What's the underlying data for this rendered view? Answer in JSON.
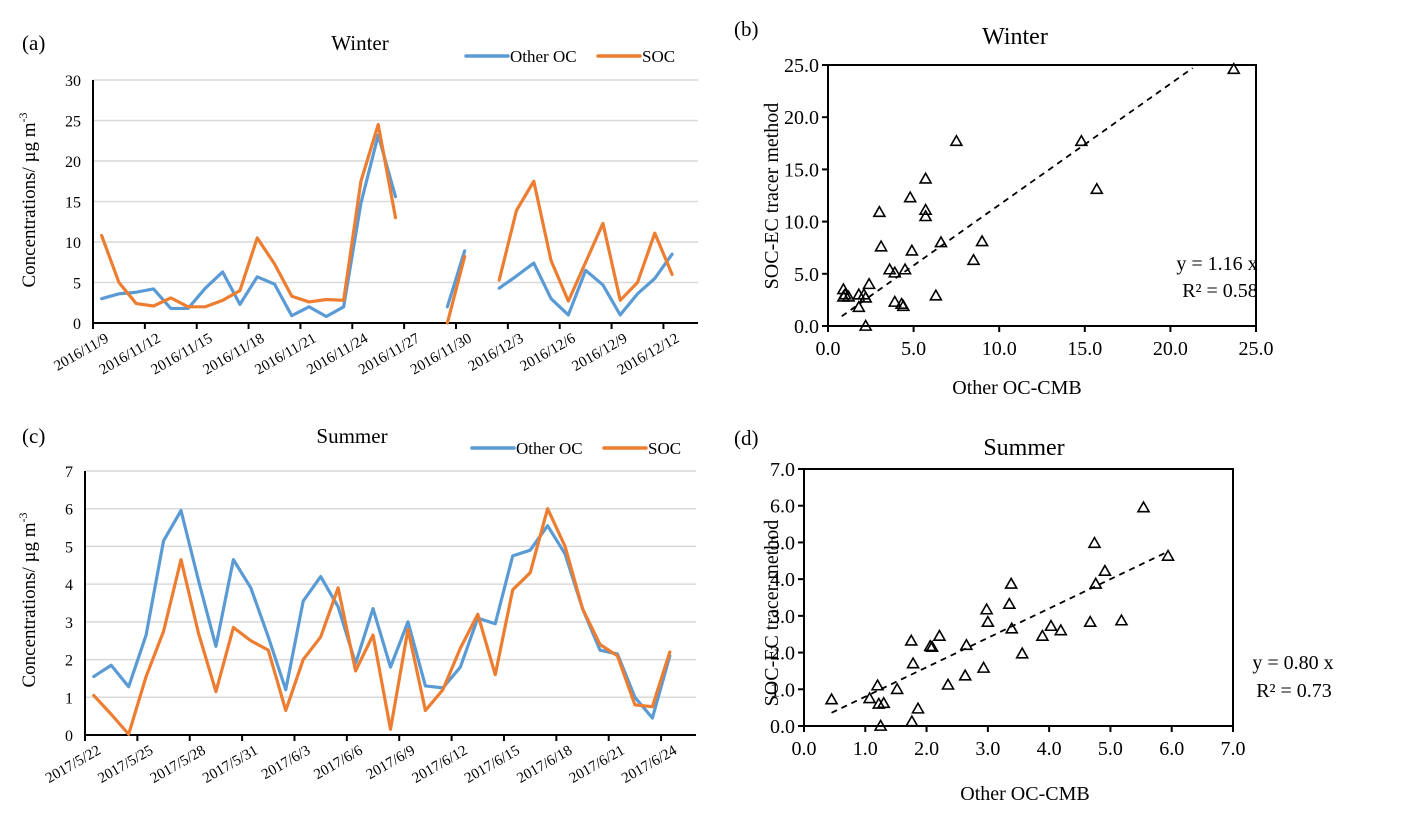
{
  "panels": {
    "a": {
      "label": "(a)"
    },
    "b": {
      "label": "(b)"
    },
    "c": {
      "label": "(c)"
    },
    "d": {
      "label": "(d)"
    }
  },
  "colors": {
    "other_oc": "#5B9BD5",
    "soc": "#ED7D31",
    "grid": "#D9D9D9",
    "axis": "#000000"
  },
  "chart_data": [
    {
      "id": "a",
      "type": "line",
      "title": "Winter",
      "xlabel": "",
      "ylabel": "Concentrations/ µg m⁻³",
      "ylabel_main": "Concentrations/ µg m",
      "ylabel_sup": "-3",
      "ylim": [
        0,
        30
      ],
      "yticks": [
        0,
        5,
        10,
        15,
        20,
        25,
        30
      ],
      "grid": true,
      "legend": "top-right",
      "legend_entries": [
        "Other OC",
        "SOC"
      ],
      "categories": [
        "2016/11/9",
        "2016/11/10",
        "2016/11/11",
        "2016/11/12",
        "2016/11/13",
        "2016/11/14",
        "2016/11/15",
        "2016/11/16",
        "2016/11/17",
        "2016/11/18",
        "2016/11/19",
        "2016/11/20",
        "2016/11/21",
        "2016/11/22",
        "2016/11/23",
        "2016/11/24",
        "2016/11/25",
        "2016/11/26",
        "2016/11/27",
        "2016/11/28",
        "2016/11/29",
        "2016/11/30",
        "2016/12/1",
        "2016/12/2",
        "2016/12/3",
        "2016/12/4",
        "2016/12/5",
        "2016/12/6",
        "2016/12/7",
        "2016/12/8",
        "2016/12/9",
        "2016/12/10",
        "2016/12/11",
        "2016/12/12",
        "2016/12/13"
      ],
      "tick_labels": [
        "2016/11/9",
        "2016/11/12",
        "2016/11/15",
        "2016/11/18",
        "2016/11/21",
        "2016/11/24",
        "2016/11/27",
        "2016/11/30",
        "2016/12/3",
        "2016/12/6",
        "2016/12/9",
        "2016/12/12"
      ],
      "series": [
        {
          "name": "Other OC",
          "values": [
            3.0,
            3.6,
            3.8,
            4.2,
            1.8,
            1.8,
            4.3,
            6.3,
            2.3,
            5.7,
            4.8,
            0.9,
            2.0,
            0.8,
            2.0,
            14.8,
            23.2,
            15.6,
            null,
            null,
            2.0,
            8.9,
            null,
            4.3,
            5.8,
            7.4,
            3.0,
            1.0,
            6.5,
            4.7,
            1.0,
            3.6,
            5.5,
            8.5,
            null
          ]
        },
        {
          "name": "SOC",
          "values": [
            10.8,
            5.0,
            2.4,
            2.1,
            3.1,
            2.0,
            2.0,
            2.8,
            4.0,
            10.5,
            7.3,
            3.3,
            2.6,
            2.9,
            2.8,
            17.5,
            24.5,
            13.0,
            null,
            null,
            0.0,
            8.2,
            null,
            5.3,
            13.9,
            17.5,
            7.7,
            2.7,
            7.5,
            12.3,
            2.8,
            5.0,
            11.1,
            6.0,
            null
          ]
        }
      ]
    },
    {
      "id": "b",
      "type": "scatter",
      "title": "Winter",
      "xlabel": "Other OC-CMB",
      "ylabel": "SOC-EC tracer method",
      "xlim": [
        0,
        25
      ],
      "ylim": [
        0,
        25
      ],
      "xticks": [
        "0.0",
        "5.0",
        "10.0",
        "15.0",
        "20.0",
        "25.0"
      ],
      "yticks": [
        "0.0",
        "5.0",
        "10.0",
        "15.0",
        "20.0",
        "25.0"
      ],
      "grid": false,
      "fit": {
        "slope": 1.16,
        "x_range": [
          0.8,
          21.3
        ],
        "equation": "y = 1.16 x",
        "r2_text": "R² = 0.58"
      },
      "points": [
        [
          0.9,
          3.5
        ],
        [
          1.0,
          3.0
        ],
        [
          0.9,
          2.8
        ],
        [
          1.2,
          2.8
        ],
        [
          1.8,
          3.0
        ],
        [
          1.8,
          1.8
        ],
        [
          2.1,
          3.0
        ],
        [
          2.2,
          2.7
        ],
        [
          2.4,
          4.0
        ],
        [
          2.2,
          0.0
        ],
        [
          3.0,
          10.9
        ],
        [
          3.1,
          7.6
        ],
        [
          3.6,
          5.4
        ],
        [
          3.9,
          5.1
        ],
        [
          3.9,
          2.3
        ],
        [
          4.3,
          2.1
        ],
        [
          4.4,
          1.9
        ],
        [
          4.5,
          5.4
        ],
        [
          4.8,
          12.3
        ],
        [
          4.9,
          7.2
        ],
        [
          5.7,
          14.1
        ],
        [
          5.7,
          11.1
        ],
        [
          5.7,
          10.5
        ],
        [
          6.3,
          2.9
        ],
        [
          6.6,
          8.0
        ],
        [
          7.5,
          17.7
        ],
        [
          8.5,
          6.3
        ],
        [
          9.0,
          8.1
        ],
        [
          14.8,
          17.7
        ],
        [
          15.7,
          13.1
        ],
        [
          23.7,
          24.6
        ]
      ]
    },
    {
      "id": "c",
      "type": "line",
      "title": "Summer",
      "xlabel": "",
      "ylabel": "Concentrations/ µg m⁻³",
      "ylabel_main": "Concentrations/ µg m",
      "ylabel_sup": "-3",
      "ylim": [
        0,
        7
      ],
      "yticks": [
        0,
        1,
        2,
        3,
        4,
        5,
        6,
        7
      ],
      "grid": true,
      "legend": "top-right",
      "legend_entries": [
        "Other OC",
        "SOC"
      ],
      "categories": [
        "2017/5/22",
        "2017/5/23",
        "2017/5/24",
        "2017/5/25",
        "2017/5/26",
        "2017/5/27",
        "2017/5/28",
        "2017/5/29",
        "2017/5/30",
        "2017/5/31",
        "2017/6/1",
        "2017/6/2",
        "2017/6/3",
        "2017/6/4",
        "2017/6/5",
        "2017/6/6",
        "2017/6/7",
        "2017/6/8",
        "2017/6/9",
        "2017/6/10",
        "2017/6/11",
        "2017/6/12",
        "2017/6/13",
        "2017/6/14",
        "2017/6/15",
        "2017/6/16",
        "2017/6/17",
        "2017/6/18",
        "2017/6/19",
        "2017/6/20",
        "2017/6/21",
        "2017/6/22",
        "2017/6/23",
        "2017/6/24",
        "2017/6/25"
      ],
      "tick_labels": [
        "2017/5/22",
        "2017/5/25",
        "2017/5/28",
        "2017/5/31",
        "2017/6/3",
        "2017/6/6",
        "2017/6/9",
        "2017/6/12",
        "2017/6/15",
        "2017/6/18",
        "2017/6/21",
        "2017/6/24"
      ],
      "series": [
        {
          "name": "Other OC",
          "values": [
            1.55,
            1.85,
            1.28,
            2.65,
            5.15,
            5.95,
            4.1,
            2.35,
            4.65,
            3.9,
            2.6,
            1.2,
            3.55,
            4.2,
            3.4,
            1.9,
            3.35,
            1.8,
            3.0,
            1.3,
            1.25,
            1.8,
            3.1,
            2.95,
            4.75,
            4.9,
            5.55,
            4.8,
            3.35,
            2.25,
            2.15,
            1.0,
            0.45,
            2.1,
            null
          ]
        },
        {
          "name": "SOC",
          "values": [
            1.05,
            0.55,
            0.02,
            1.55,
            2.75,
            4.65,
            2.7,
            1.15,
            2.85,
            2.5,
            2.25,
            0.65,
            2.0,
            2.6,
            3.9,
            1.7,
            2.65,
            0.15,
            2.8,
            0.65,
            1.2,
            2.3,
            3.2,
            1.6,
            3.85,
            4.3,
            6.0,
            5.0,
            3.35,
            2.4,
            2.1,
            0.8,
            0.75,
            2.2,
            null
          ]
        }
      ]
    },
    {
      "id": "d",
      "type": "scatter",
      "title": "Summer",
      "xlabel": "Other OC-CMB",
      "ylabel": "SOC-EC tracer method",
      "xlim": [
        0,
        7
      ],
      "ylim": [
        0,
        7
      ],
      "xticks": [
        "0.0",
        "1.0",
        "2.0",
        "3.0",
        "4.0",
        "5.0",
        "6.0",
        "7.0"
      ],
      "yticks": [
        "0.0",
        "1.0",
        "2.0",
        "3.0",
        "4.0",
        "5.0",
        "6.0",
        "7.0"
      ],
      "grid": false,
      "fit": {
        "slope": 0.8,
        "x_range": [
          0.45,
          5.95
        ],
        "equation": "y = 0.80 x",
        "r2_text": "R² = 0.73"
      },
      "points": [
        [
          0.45,
          0.72
        ],
        [
          1.07,
          0.75
        ],
        [
          1.2,
          1.1
        ],
        [
          1.22,
          0.6
        ],
        [
          1.3,
          0.62
        ],
        [
          1.25,
          0.0
        ],
        [
          1.52,
          1.0
        ],
        [
          1.75,
          2.32
        ],
        [
          1.78,
          1.7
        ],
        [
          1.76,
          0.12
        ],
        [
          1.86,
          0.47
        ],
        [
          2.06,
          2.17
        ],
        [
          2.09,
          2.15
        ],
        [
          2.21,
          2.45
        ],
        [
          2.35,
          1.12
        ],
        [
          2.63,
          1.37
        ],
        [
          2.65,
          2.2
        ],
        [
          2.93,
          1.58
        ],
        [
          2.98,
          3.17
        ],
        [
          3.0,
          2.83
        ],
        [
          3.35,
          3.32
        ],
        [
          3.38,
          3.87
        ],
        [
          3.39,
          2.65
        ],
        [
          3.56,
          1.97
        ],
        [
          3.89,
          2.45
        ],
        [
          4.03,
          2.72
        ],
        [
          4.19,
          2.6
        ],
        [
          4.67,
          2.83
        ],
        [
          4.74,
          4.98
        ],
        [
          4.76,
          3.87
        ],
        [
          4.91,
          4.22
        ],
        [
          5.18,
          2.87
        ],
        [
          5.54,
          5.95
        ],
        [
          5.94,
          4.63
        ]
      ]
    }
  ]
}
